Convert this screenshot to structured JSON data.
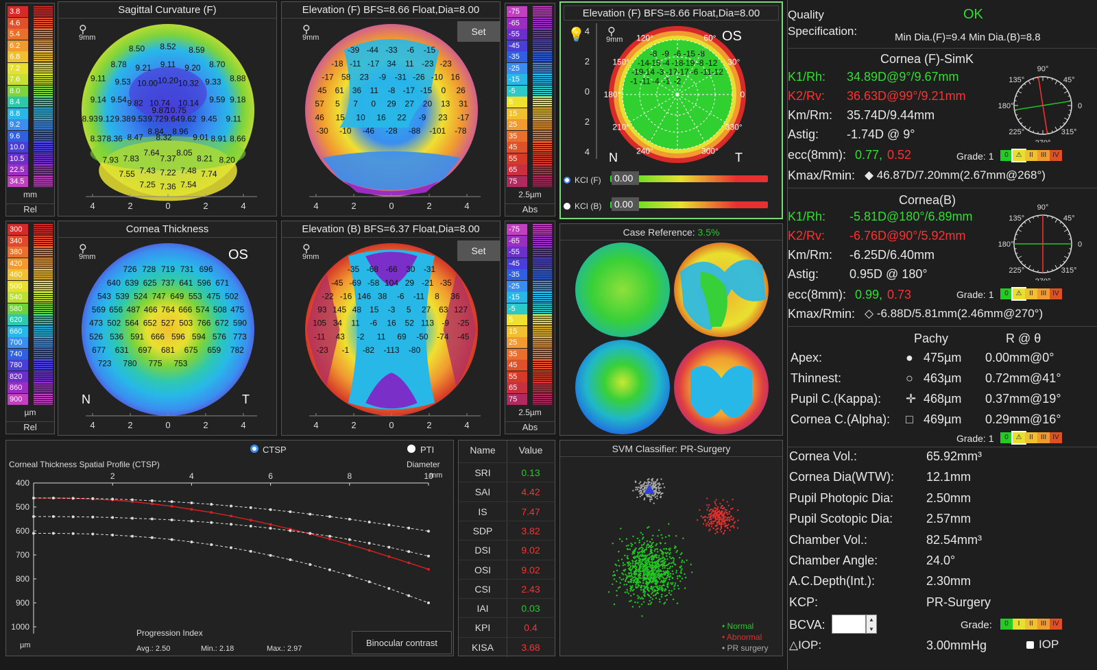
{
  "scales": {
    "curv": {
      "values": [
        "3.8",
        "4.6",
        "5.4",
        "6.2",
        "6.8",
        "7.2",
        "7.6",
        "8.0",
        "8.4",
        "8.8",
        "9.2",
        "9.6",
        "10.0",
        "10.5",
        "22.5",
        "34.5"
      ],
      "colors": [
        "#d52a28",
        "#e0502a",
        "#e8702c",
        "#f09a30",
        "#f0c030",
        "#e8e030",
        "#c8e030",
        "#7ed43a",
        "#2ec8a8",
        "#28b8e8",
        "#3a8ef0",
        "#3060e0",
        "#4a3ed8",
        "#6a30c8",
        "#9a2ec0",
        "#c040c0"
      ],
      "unit": "mm",
      "mode": "Rel"
    },
    "pachy": {
      "values": [
        "300",
        "340",
        "380",
        "420",
        "460",
        "500",
        "540",
        "580",
        "620",
        "660",
        "700",
        "740",
        "780",
        "820",
        "860",
        "900"
      ],
      "colors": [
        "#d52a28",
        "#e04a2a",
        "#e8702c",
        "#f09a30",
        "#f0c030",
        "#e8e030",
        "#bce032",
        "#6ed23a",
        "#2ec8b0",
        "#28b8e8",
        "#3a8ef0",
        "#3060e0",
        "#4a3ed8",
        "#6a30c8",
        "#9a2ec0",
        "#c040c0"
      ],
      "unit": "µm",
      "mode": "Rel"
    },
    "elevF": {
      "values": [
        "-75",
        "-65",
        "-55",
        "-45",
        "-35",
        "-25",
        "-15",
        "-5",
        "5",
        "15",
        "25",
        "35",
        "45",
        "55",
        "65",
        "75"
      ],
      "colors": [
        "#c040c0",
        "#9a2ec0",
        "#6a30c8",
        "#4a3ed8",
        "#3060e0",
        "#3a8ef0",
        "#28b8e8",
        "#2ec8c8",
        "#f0e030",
        "#f0c030",
        "#f09a30",
        "#e8702c",
        "#e0502a",
        "#d53a28",
        "#c83040",
        "#b02a60"
      ],
      "unit": "2.5µm",
      "mode": "Abs"
    },
    "elevB": {
      "values": [
        "-75",
        "-65",
        "-55",
        "-45",
        "-35",
        "-25",
        "-15",
        "-5",
        "5",
        "15",
        "25",
        "35",
        "45",
        "55",
        "65",
        "75"
      ],
      "colors": [
        "#c040c0",
        "#9a2ec0",
        "#6a30c8",
        "#4a3ed8",
        "#3060e0",
        "#3a8ef0",
        "#28b8e8",
        "#2ec8c8",
        "#f0e030",
        "#f0c030",
        "#f09a30",
        "#e8702c",
        "#e0502a",
        "#d53a28",
        "#c83040",
        "#b02a60"
      ],
      "unit": "2.5µm",
      "mode": "Abs"
    }
  },
  "maps": {
    "sag": {
      "title": "Sagittal Curvature (F)",
      "zoom": "9mm",
      "labels": [
        "8.50",
        "8.52",
        "8.59",
        "8.78",
        "9.21",
        "9.11",
        "9.20",
        "8.70",
        "9.11",
        "9.53",
        "10.00",
        "10.20",
        "10.32",
        "9.33",
        "8.88",
        "9.14",
        "9.54",
        "9.82",
        "10.74",
        "10.14",
        "9.59",
        "9.18",
        "9.87",
        "10.75",
        "8.93",
        "9.12",
        "9.38",
        "9.53",
        "9.72",
        "9.64",
        "9.62",
        "9.45",
        "9.11",
        "8.84",
        "8.96",
        "8.37",
        "8.36",
        "8.47",
        "8.32",
        "9.01",
        "8.91",
        "8.66",
        "7.64",
        "8.05",
        "7.93",
        "7.83",
        "7.37",
        "8.21",
        "8.20",
        "7.43",
        "7.22",
        "7.48",
        "7.55",
        "7.74",
        "7.25",
        "7.36",
        "7.54"
      ],
      "axis": [
        "4",
        "2",
        "0",
        "2",
        "4"
      ]
    },
    "elevF": {
      "title": "Elevation (F) BFS=8.66 Float,Dia=8.00",
      "zoom": "9mm",
      "set": "Set",
      "labels": [
        "-39",
        "-44",
        "-33",
        "-6",
        "-15",
        "-18",
        "-11",
        "-17",
        "34",
        "11",
        "-23",
        "-23",
        "-17",
        "58",
        "23",
        "-9",
        "-31",
        "-26",
        "-10",
        "16",
        "45",
        "61",
        "36",
        "11",
        "-8",
        "-17",
        "-15",
        "0",
        "26",
        "57",
        "5",
        "7",
        "0",
        "29",
        "27",
        "20",
        "13",
        "31",
        "46",
        "15",
        "10",
        "16",
        "22",
        "-9",
        "23",
        "-17",
        "-30",
        "-10",
        "-46",
        "-28",
        "-88",
        "-101",
        "-78"
      ],
      "axis": [
        "4",
        "2",
        "0",
        "2",
        "4"
      ]
    },
    "thick": {
      "title": "Cornea Thickness",
      "zoom": "9mm",
      "eye": "OS",
      "n": "N",
      "t": "T",
      "labels": [
        "726",
        "728",
        "719",
        "731",
        "696",
        "640",
        "639",
        "625",
        "737",
        "641",
        "596",
        "671",
        "543",
        "539",
        "524",
        "747",
        "649",
        "553",
        "475",
        "502",
        "569",
        "656",
        "487",
        "466",
        "764",
        "666",
        "574",
        "508",
        "475",
        "473",
        "502",
        "564",
        "652",
        "527",
        "503",
        "766",
        "672",
        "590",
        "526",
        "536",
        "591",
        "666",
        "596",
        "594",
        "576",
        "773",
        "677",
        "631",
        "697",
        "681",
        "675",
        "659",
        "782",
        "723",
        "780",
        "775",
        "753"
      ],
      "axis": [
        "4",
        "2",
        "0",
        "2",
        "4"
      ]
    },
    "elevB": {
      "title": "Elevation (B) BFS=6.37 Float,Dia=8.00",
      "zoom": "9mm",
      "set": "Set",
      "labels": [
        "-35",
        "-68",
        "-66",
        "30",
        "-31",
        "-45",
        "-69",
        "-58",
        "104",
        "29",
        "-21",
        "-35",
        "-22",
        "-16",
        "146",
        "38",
        "-6",
        "-11",
        "8",
        "36",
        "93",
        "145",
        "48",
        "15",
        "-3",
        "5",
        "27",
        "63",
        "127",
        "105",
        "34",
        "11",
        "-6",
        "16",
        "52",
        "113",
        "-9",
        "-25",
        "-11",
        "43",
        "-2",
        "11",
        "69",
        "-50",
        "-74",
        "-45",
        "-23",
        "-1",
        "-82",
        "-113",
        "-80"
      ],
      "axis": [
        "4",
        "2",
        "0",
        "2",
        "4"
      ]
    }
  },
  "kci": {
    "title": "Elevation (F) BFS=8.66 Float,Dia=8.00",
    "zoom": "9mm",
    "eye": "OS",
    "n": "N",
    "t": "T",
    "yticks": [
      "4",
      "2",
      "0",
      "2",
      "4"
    ],
    "angles": [
      "120°",
      "60°",
      "30°",
      "150°",
      "0",
      "180°",
      "210°",
      "330°",
      "240°",
      "300°"
    ],
    "labels": [
      "-8",
      "-9",
      "-6",
      "-15",
      "-8",
      "-14",
      "-15",
      "-4",
      "-18",
      "-19",
      "-8",
      "-12",
      "-19",
      "-14",
      "-3",
      "-17",
      "-17",
      "-6",
      "-11",
      "-12",
      "-1",
      "-11",
      "-4",
      "-1",
      "-2"
    ],
    "kcif_label": "KCI (F)",
    "kcif_value": "0.00",
    "kcib_label": "KCI (B)",
    "kcib_value": "0.00"
  },
  "case": {
    "title": "Case Reference:",
    "value": "3.5%"
  },
  "ctsp": {
    "radio_ctsp": "CTSP",
    "radio_pti": "PTI",
    "title": "Corneal Thickness Spatial Profile (CTSP)",
    "diameter": "Diameter",
    "mm": "mm",
    "um": "µm",
    "xticks": [
      "2",
      "4",
      "6",
      "8",
      "10"
    ],
    "yticks": [
      "400",
      "500",
      "600",
      "700",
      "800",
      "900",
      "1000"
    ],
    "progression": "Progression Index",
    "avg": "Avg.: 2.50",
    "min": "Min.: 2.18",
    "max": "Max.: 2.97",
    "binocular": "Binocular contrast"
  },
  "chart_data": {
    "type": "line",
    "xlabel": "Diameter",
    "ylabel": "µm",
    "xlim": [
      0,
      10
    ],
    "ylim": [
      400,
      1000
    ],
    "x": [
      0,
      0.5,
      1,
      1.5,
      2,
      2.5,
      3,
      3.5,
      4,
      4.5,
      5,
      5.5,
      6,
      6.5,
      7,
      7.5,
      8,
      8.5,
      9,
      9.5,
      10
    ],
    "series": [
      {
        "values": [
          463,
          463,
          464,
          467,
          471,
          478,
          487,
          497,
          510,
          523,
          538,
          555,
          573,
          592,
          612,
          634,
          657,
          681,
          707,
          733,
          760
        ],
        "color": "#d42020"
      },
      {
        "values": [
          463,
          463,
          464,
          465,
          467,
          470,
          474,
          478,
          483,
          489,
          496,
          503,
          511,
          520,
          530,
          540,
          551,
          563,
          575,
          588,
          601
        ],
        "color": "#dddddd"
      },
      {
        "values": [
          540,
          540,
          541,
          542,
          544,
          547,
          550,
          554,
          559,
          565,
          572,
          580,
          589,
          599,
          610,
          622,
          636,
          651,
          668,
          686,
          705
        ],
        "color": "#dddddd"
      },
      {
        "values": [
          610,
          610,
          611,
          613,
          617,
          622,
          628,
          636,
          646,
          657,
          670,
          685,
          702,
          720,
          740,
          762,
          786,
          812,
          840,
          870,
          900
        ],
        "color": "#dddddd"
      }
    ]
  },
  "indices": {
    "h_name": "Name",
    "h_value": "Value",
    "rows": [
      {
        "name": "SRI",
        "value": "0.13",
        "color": "#22cc22"
      },
      {
        "name": "SAI",
        "value": "4.42",
        "color": "#ff3030"
      },
      {
        "name": "IS",
        "value": "7.47",
        "color": "#ff3030"
      },
      {
        "name": "SDP",
        "value": "3.82",
        "color": "#ff3030"
      },
      {
        "name": "DSI",
        "value": "9.02",
        "color": "#ff3030"
      },
      {
        "name": "OSI",
        "value": "9.02",
        "color": "#ff3030"
      },
      {
        "name": "CSI",
        "value": "2.43",
        "color": "#ff3030"
      },
      {
        "name": "IAI",
        "value": "0.03",
        "color": "#22cc22"
      },
      {
        "name": "KPI",
        "value": "0.4",
        "color": "#ff3030"
      },
      {
        "name": "KISA",
        "value": "3.68",
        "color": "#ff3030"
      }
    ]
  },
  "svm": {
    "title": "SVM Classifier: PR-Surgery",
    "legend": [
      {
        "label": "Normal",
        "color": "#22cc22"
      },
      {
        "label": "Abnormal",
        "color": "#e03030"
      },
      {
        "label": "PR surgery",
        "color": "#aaaaaa"
      }
    ]
  },
  "right": {
    "quality": "Quality",
    "spec": "Specification:",
    "ok": "OK",
    "mindia": "Min Dia.(F)=9.4  Min Dia.(B)=8.8",
    "corneaF_title": "Cornea (F)-SimK",
    "f_k1_label": "K1/Rh:",
    "f_k1": "34.89D@9°/9.67mm",
    "f_k2_label": "K2/Rv:",
    "f_k2": "36.63D@99°/9.21mm",
    "f_km_label": "Km/Rm:",
    "f_km": "35.74D/9.44mm",
    "f_astig_label": "Astig:",
    "f_astig": "-1.74D @ 9°",
    "f_ecc_label": "ecc(8mm):",
    "f_ecc1": "0.77,",
    "f_ecc2": "0.52",
    "f_kmax_label": "Kmax/Rmin:",
    "f_kmax": "◆ 46.87D/7.20mm(2.67mm@268°)",
    "grade_label": "Grade: 1",
    "grades": [
      "0",
      "⚠",
      "II",
      "III",
      "IV"
    ],
    "corneaB_title": "Cornea(B)",
    "b_k1_label": "K1/Rh:",
    "b_k1": "-5.81D@180°/6.89mm",
    "b_k2_label": "K2/Rv:",
    "b_k2": "-6.76D@90°/5.92mm",
    "b_km_label": "Km/Rm:",
    "b_km": "-6.25D/6.40mm",
    "b_astig_label": "Astig:",
    "b_astig": "0.95D @ 180°",
    "b_ecc_label": "ecc(8mm):",
    "b_ecc1": "0.99,",
    "b_ecc2": "0.73",
    "b_kmax_label": "Kmax/Rmin:",
    "b_kmax": "◇ -6.88D/5.81mm(2.46mm@270°)",
    "dial_angles": [
      "90°",
      "45°",
      "135°",
      "180°",
      "0",
      "225°",
      "270°",
      "315°"
    ],
    "pachy_h": "Pachy",
    "r_h": "R @ θ",
    "pachy_rows": [
      {
        "label": "Apex:",
        "icon": "●",
        "val": "475µm",
        "r": "0.00mm@0°"
      },
      {
        "label": "Thinnest:",
        "icon": "○",
        "val": "463µm",
        "r": "0.72mm@41°"
      },
      {
        "label": "Pupil C.(Kappa):",
        "icon": "✛",
        "val": "468µm",
        "r": "0.37mm@19°"
      },
      {
        "label": "Cornea C.(Alpha):",
        "icon": "□",
        "val": "469µm",
        "r": "0.29mm@16°"
      }
    ],
    "grades2": [
      "0",
      "I",
      "II",
      "III",
      "IV"
    ],
    "info": [
      {
        "label": "Cornea Vol.:",
        "val": "65.92mm³"
      },
      {
        "label": "Cornea Dia(WTW):",
        "val": "12.1mm"
      },
      {
        "label": "Pupil Photopic Dia:",
        "val": "2.50mm"
      },
      {
        "label": "Pupil Scotopic Dia:",
        "val": "2.57mm"
      },
      {
        "label": "Chamber Vol.:",
        "val": "82.54mm³"
      },
      {
        "label": "Chamber Angle:",
        "val": "24.0°"
      },
      {
        "label": "A.C.Depth(Int.):",
        "val": "2.30mm"
      },
      {
        "label": "KCP:",
        "val": "PR-Surgery"
      }
    ],
    "bcva": "BCVA:",
    "grade_word": "Grade:",
    "iop_label": "△IOP:",
    "iop_val": "3.00mmHg",
    "iop_check": "IOP"
  }
}
